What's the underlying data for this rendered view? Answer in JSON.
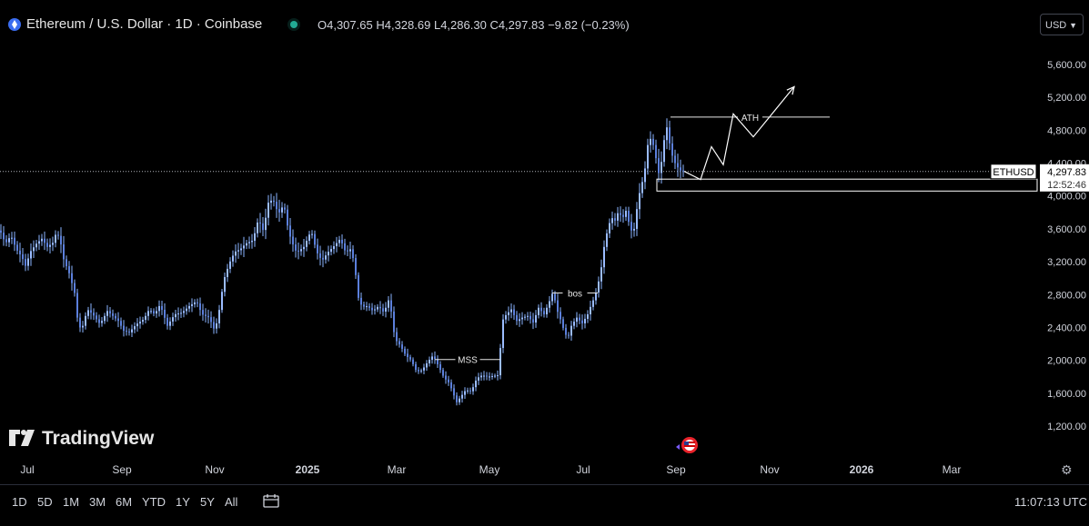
{
  "header": {
    "symbol_title": "Ethereum / U.S. Dollar · 1D · Coinbase",
    "ohlc": {
      "open": "O4,307.65",
      "high": "H4,328.69",
      "low": "L4,286.30",
      "close": "C4,297.83",
      "change": "−9.82 (−0.23%)"
    },
    "currency": "USD"
  },
  "chart_data": {
    "type": "candlestick",
    "x_tick_labels": [
      "Jul",
      "Sep",
      "Nov",
      "2025",
      "Mar",
      "May",
      "Jul",
      "Sep",
      "Nov",
      "2026",
      "Mar"
    ],
    "y_tick_labels": [
      "5,600.00",
      "5,200.00",
      "4,800.00",
      "4,400.00",
      "4,000.00",
      "3,600.00",
      "3,200.00",
      "2,800.00",
      "2,400.00",
      "2,000.00",
      "1,600.00",
      "1,200.00"
    ],
    "y_ticks": [
      5600,
      5200,
      4800,
      4400,
      4000,
      3600,
      3200,
      2800,
      2400,
      2000,
      1600,
      1200
    ],
    "ylim": [
      1100,
      5700
    ],
    "last_price": 4297.83,
    "last_price_label": "4,297.83",
    "countdown": "12:52:46",
    "symbol_tag": "ETHUSD",
    "price_path": [
      [
        0,
        3580
      ],
      [
        6,
        3420
      ],
      [
        12,
        3520
      ],
      [
        18,
        3350
      ],
      [
        24,
        3260
      ],
      [
        28,
        3150
      ],
      [
        34,
        3330
      ],
      [
        40,
        3420
      ],
      [
        46,
        3480
      ],
      [
        52,
        3380
      ],
      [
        58,
        3430
      ],
      [
        62,
        3560
      ],
      [
        66,
        3470
      ],
      [
        70,
        3230
      ],
      [
        76,
        3060
      ],
      [
        82,
        2820
      ],
      [
        86,
        2420
      ],
      [
        90,
        2380
      ],
      [
        96,
        2620
      ],
      [
        102,
        2560
      ],
      [
        110,
        2440
      ],
      [
        118,
        2600
      ],
      [
        124,
        2540
      ],
      [
        130,
        2480
      ],
      [
        136,
        2360
      ],
      [
        142,
        2340
      ],
      [
        150,
        2440
      ],
      [
        158,
        2500
      ],
      [
        164,
        2620
      ],
      [
        170,
        2560
      ],
      [
        176,
        2680
      ],
      [
        184,
        2420
      ],
      [
        192,
        2560
      ],
      [
        200,
        2580
      ],
      [
        208,
        2660
      ],
      [
        216,
        2720
      ],
      [
        222,
        2560
      ],
      [
        230,
        2520
      ],
      [
        236,
        2360
      ],
      [
        240,
        2540
      ],
      [
        246,
        2980
      ],
      [
        252,
        3180
      ],
      [
        258,
        3320
      ],
      [
        264,
        3350
      ],
      [
        270,
        3420
      ],
      [
        278,
        3460
      ],
      [
        284,
        3720
      ],
      [
        290,
        3560
      ],
      [
        294,
        3910
      ],
      [
        300,
        3960
      ],
      [
        306,
        3780
      ],
      [
        312,
        3900
      ],
      [
        316,
        3640
      ],
      [
        320,
        3460
      ],
      [
        326,
        3310
      ],
      [
        334,
        3380
      ],
      [
        342,
        3580
      ],
      [
        348,
        3320
      ],
      [
        354,
        3210
      ],
      [
        360,
        3310
      ],
      [
        368,
        3400
      ],
      [
        374,
        3480
      ],
      [
        380,
        3310
      ],
      [
        386,
        3360
      ],
      [
        390,
        3130
      ],
      [
        394,
        2760
      ],
      [
        398,
        2650
      ],
      [
        404,
        2660
      ],
      [
        410,
        2600
      ],
      [
        416,
        2660
      ],
      [
        422,
        2580
      ],
      [
        428,
        2760
      ],
      [
        434,
        2260
      ],
      [
        440,
        2180
      ],
      [
        446,
        2060
      ],
      [
        452,
        2000
      ],
      [
        458,
        1860
      ],
      [
        464,
        1880
      ],
      [
        470,
        1980
      ],
      [
        476,
        2060
      ],
      [
        482,
        1930
      ],
      [
        488,
        1790
      ],
      [
        494,
        1720
      ],
      [
        498,
        1600
      ],
      [
        502,
        1490
      ],
      [
        506,
        1550
      ],
      [
        512,
        1640
      ],
      [
        518,
        1620
      ],
      [
        524,
        1780
      ],
      [
        530,
        1820
      ],
      [
        536,
        1800
      ],
      [
        542,
        1810
      ],
      [
        548,
        1820
      ],
      [
        552,
        2480
      ],
      [
        556,
        2550
      ],
      [
        562,
        2620
      ],
      [
        568,
        2480
      ],
      [
        574,
        2520
      ],
      [
        580,
        2540
      ],
      [
        586,
        2460
      ],
      [
        592,
        2640
      ],
      [
        598,
        2560
      ],
      [
        604,
        2720
      ],
      [
        608,
        2840
      ],
      [
        612,
        2620
      ],
      [
        616,
        2500
      ],
      [
        620,
        2360
      ],
      [
        624,
        2260
      ],
      [
        628,
        2420
      ],
      [
        634,
        2520
      ],
      [
        640,
        2450
      ],
      [
        646,
        2560
      ],
      [
        650,
        2680
      ],
      [
        654,
        2780
      ],
      [
        660,
        3050
      ],
      [
        664,
        3380
      ],
      [
        668,
        3600
      ],
      [
        672,
        3740
      ],
      [
        676,
        3700
      ],
      [
        680,
        3820
      ],
      [
        684,
        3720
      ],
      [
        688,
        3820
      ],
      [
        692,
        3640
      ],
      [
        696,
        3520
      ],
      [
        700,
        3840
      ],
      [
        704,
        4100
      ],
      [
        708,
        4240
      ],
      [
        712,
        4620
      ],
      [
        716,
        4720
      ],
      [
        720,
        4520
      ],
      [
        724,
        4280
      ],
      [
        728,
        4460
      ],
      [
        732,
        4900
      ],
      [
        736,
        4640
      ],
      [
        740,
        4440
      ],
      [
        744,
        4360
      ],
      [
        748,
        4310
      ],
      [
        752,
        4300
      ]
    ],
    "projection": [
      [
        752,
        4300
      ],
      [
        770,
        4200
      ],
      [
        782,
        4600
      ],
      [
        795,
        4380
      ],
      [
        806,
        5000
      ],
      [
        828,
        4720
      ],
      [
        873,
        5330
      ]
    ],
    "annotations": [
      {
        "label": "MSS",
        "x1": 478,
        "x2": 550,
        "price": 2010
      },
      {
        "label": "bos",
        "x1": 607,
        "x2": 657,
        "price": 2820
      },
      {
        "label": "ATH",
        "x1": 737,
        "x2": 912,
        "price": 4960
      }
    ],
    "zone": {
      "x1": 722,
      "x2": 1140,
      "price_top": 4205,
      "price_bottom": 4060
    }
  },
  "bottom_bar": {
    "timeframes": [
      "1D",
      "5D",
      "1M",
      "3M",
      "6M",
      "YTD",
      "1Y",
      "5Y",
      "All"
    ],
    "clock": "11:07:13 UTC"
  },
  "branding": {
    "logo_text": "TradingView"
  },
  "colors": {
    "candle": "#8ab4ff",
    "line": "#ffffff",
    "background": "#000000"
  }
}
